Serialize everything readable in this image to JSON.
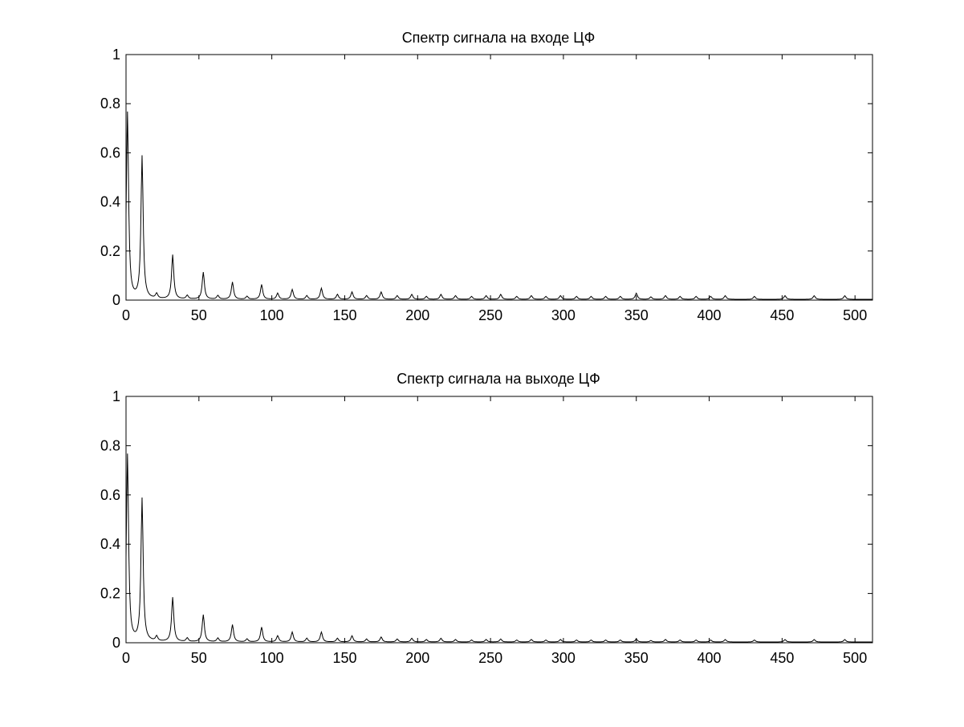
{
  "figure": {
    "background": "#ffffff",
    "line_color": "#000000"
  },
  "chart_data": [
    {
      "type": "line",
      "title": "Спектр сигнала на входе ЦФ",
      "xlabel": "",
      "ylabel": "",
      "xlim": [
        0,
        512
      ],
      "ylim": [
        0,
        1
      ],
      "xticks": [
        0,
        50,
        100,
        150,
        200,
        250,
        300,
        350,
        400,
        450,
        500
      ],
      "yticks": [
        0,
        0.2,
        0.4,
        0.6,
        0.8,
        1
      ],
      "ytick_labels": [
        "0",
        "0.2",
        "0.4",
        "0.6",
        "0.8",
        "1"
      ],
      "grid": false,
      "baseline": 0.003,
      "peaks": [
        {
          "x": 1,
          "y": 0.76
        },
        {
          "x": 11,
          "y": 0.58
        },
        {
          "x": 21,
          "y": 0.02
        },
        {
          "x": 32,
          "y": 0.18
        },
        {
          "x": 42,
          "y": 0.015
        },
        {
          "x": 53,
          "y": 0.11
        },
        {
          "x": 63,
          "y": 0.015
        },
        {
          "x": 73,
          "y": 0.07
        },
        {
          "x": 83,
          "y": 0.012
        },
        {
          "x": 93,
          "y": 0.06
        },
        {
          "x": 104,
          "y": 0.025
        },
        {
          "x": 114,
          "y": 0.04
        },
        {
          "x": 124,
          "y": 0.015
        },
        {
          "x": 134,
          "y": 0.045
        },
        {
          "x": 145,
          "y": 0.02
        },
        {
          "x": 155,
          "y": 0.03
        },
        {
          "x": 165,
          "y": 0.015
        },
        {
          "x": 175,
          "y": 0.03
        },
        {
          "x": 186,
          "y": 0.015
        },
        {
          "x": 196,
          "y": 0.02
        },
        {
          "x": 206,
          "y": 0.012
        },
        {
          "x": 216,
          "y": 0.02
        },
        {
          "x": 226,
          "y": 0.015
        },
        {
          "x": 237,
          "y": 0.012
        },
        {
          "x": 247,
          "y": 0.015
        },
        {
          "x": 257,
          "y": 0.02
        },
        {
          "x": 268,
          "y": 0.012
        },
        {
          "x": 278,
          "y": 0.015
        },
        {
          "x": 288,
          "y": 0.012
        },
        {
          "x": 298,
          "y": 0.015
        },
        {
          "x": 309,
          "y": 0.012
        },
        {
          "x": 319,
          "y": 0.012
        },
        {
          "x": 329,
          "y": 0.012
        },
        {
          "x": 339,
          "y": 0.012
        },
        {
          "x": 350,
          "y": 0.025
        },
        {
          "x": 360,
          "y": 0.01
        },
        {
          "x": 370,
          "y": 0.015
        },
        {
          "x": 380,
          "y": 0.012
        },
        {
          "x": 391,
          "y": 0.012
        },
        {
          "x": 401,
          "y": 0.012
        },
        {
          "x": 411,
          "y": 0.015
        },
        {
          "x": 431,
          "y": 0.012
        },
        {
          "x": 452,
          "y": 0.015
        },
        {
          "x": 472,
          "y": 0.015
        },
        {
          "x": 493,
          "y": 0.015
        }
      ]
    },
    {
      "type": "line",
      "title": "Спектр сигнала на выходе ЦФ",
      "xlabel": "",
      "ylabel": "",
      "xlim": [
        0,
        512
      ],
      "ylim": [
        0,
        1
      ],
      "xticks": [
        0,
        50,
        100,
        150,
        200,
        250,
        300,
        350,
        400,
        450,
        500
      ],
      "yticks": [
        0,
        0.2,
        0.4,
        0.6,
        0.8,
        1
      ],
      "ytick_labels": [
        "0",
        "0.2",
        "0.4",
        "0.6",
        "0.8",
        "1"
      ],
      "grid": false,
      "baseline": 0.003,
      "peaks": [
        {
          "x": 1,
          "y": 0.76
        },
        {
          "x": 11,
          "y": 0.58
        },
        {
          "x": 21,
          "y": 0.02
        },
        {
          "x": 32,
          "y": 0.18
        },
        {
          "x": 42,
          "y": 0.015
        },
        {
          "x": 53,
          "y": 0.11
        },
        {
          "x": 63,
          "y": 0.015
        },
        {
          "x": 73,
          "y": 0.07
        },
        {
          "x": 83,
          "y": 0.012
        },
        {
          "x": 93,
          "y": 0.06
        },
        {
          "x": 104,
          "y": 0.025
        },
        {
          "x": 114,
          "y": 0.04
        },
        {
          "x": 124,
          "y": 0.015
        },
        {
          "x": 134,
          "y": 0.04
        },
        {
          "x": 145,
          "y": 0.015
        },
        {
          "x": 155,
          "y": 0.025
        },
        {
          "x": 165,
          "y": 0.012
        },
        {
          "x": 175,
          "y": 0.02
        },
        {
          "x": 186,
          "y": 0.012
        },
        {
          "x": 196,
          "y": 0.015
        },
        {
          "x": 206,
          "y": 0.01
        },
        {
          "x": 216,
          "y": 0.015
        },
        {
          "x": 226,
          "y": 0.01
        },
        {
          "x": 237,
          "y": 0.008
        },
        {
          "x": 247,
          "y": 0.01
        },
        {
          "x": 257,
          "y": 0.012
        },
        {
          "x": 268,
          "y": 0.008
        },
        {
          "x": 278,
          "y": 0.01
        },
        {
          "x": 288,
          "y": 0.008
        },
        {
          "x": 298,
          "y": 0.01
        },
        {
          "x": 309,
          "y": 0.008
        },
        {
          "x": 319,
          "y": 0.008
        },
        {
          "x": 329,
          "y": 0.008
        },
        {
          "x": 339,
          "y": 0.008
        },
        {
          "x": 350,
          "y": 0.012
        },
        {
          "x": 360,
          "y": 0.006
        },
        {
          "x": 370,
          "y": 0.01
        },
        {
          "x": 380,
          "y": 0.008
        },
        {
          "x": 391,
          "y": 0.008
        },
        {
          "x": 401,
          "y": 0.008
        },
        {
          "x": 411,
          "y": 0.01
        },
        {
          "x": 431,
          "y": 0.008
        },
        {
          "x": 452,
          "y": 0.01
        },
        {
          "x": 472,
          "y": 0.01
        },
        {
          "x": 493,
          "y": 0.01
        }
      ]
    }
  ]
}
